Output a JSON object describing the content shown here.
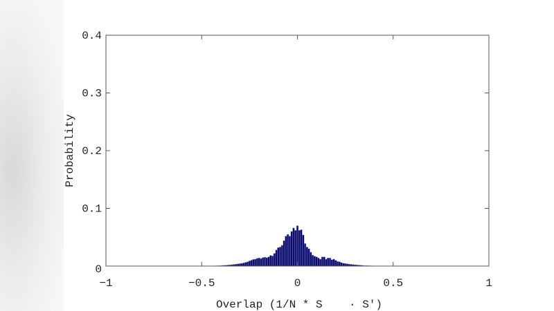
{
  "chart_data": {
    "type": "bar",
    "title": "",
    "xlabel": "Overlap (1/N * S    · S′)",
    "ylabel": "Probability",
    "xlim": [
      -1,
      1
    ],
    "ylim": [
      0,
      0.4
    ],
    "xticks": [
      "-1",
      "-0.5",
      "0",
      "0.5",
      "1"
    ],
    "xtick_values": [
      -1,
      -0.5,
      0,
      0.5,
      1
    ],
    "yticks": [
      "0",
      "0.1",
      "0.2",
      "0.3",
      "0.4"
    ],
    "ytick_values": [
      0,
      0.1,
      0.2,
      0.3,
      0.4
    ],
    "grid": false,
    "bar_color": "#0a0a6e",
    "bin_width": 0.01,
    "x": [
      -0.45,
      -0.44,
      -0.43,
      -0.42,
      -0.41,
      -0.4,
      -0.39,
      -0.38,
      -0.37,
      -0.36,
      -0.35,
      -0.34,
      -0.33,
      -0.32,
      -0.31,
      -0.3,
      -0.29,
      -0.28,
      -0.27,
      -0.26,
      -0.25,
      -0.24,
      -0.23,
      -0.22,
      -0.21,
      -0.2,
      -0.19,
      -0.18,
      -0.17,
      -0.16,
      -0.15,
      -0.14,
      -0.13,
      -0.12,
      -0.11,
      -0.1,
      -0.09,
      -0.08,
      -0.07,
      -0.06,
      -0.05,
      -0.04,
      -0.03,
      -0.02,
      -0.01,
      0.0,
      0.01,
      0.02,
      0.03,
      0.04,
      0.05,
      0.06,
      0.07,
      0.08,
      0.09,
      0.1,
      0.11,
      0.12,
      0.13,
      0.14,
      0.15,
      0.16,
      0.17,
      0.18,
      0.19,
      0.2,
      0.21,
      0.22,
      0.23,
      0.24,
      0.25,
      0.26,
      0.27,
      0.28,
      0.29,
      0.3,
      0.31,
      0.32,
      0.33,
      0.34,
      0.35,
      0.36,
      0.37,
      0.38,
      0.39,
      0.4,
      0.41,
      0.42,
      0.43,
      0.44,
      0.45
    ],
    "values": [
      0.0003,
      0.0004,
      0.0005,
      0.0006,
      0.0008,
      0.001,
      0.0012,
      0.0014,
      0.0016,
      0.0019,
      0.0022,
      0.0025,
      0.003,
      0.0034,
      0.0038,
      0.0043,
      0.0048,
      0.0055,
      0.0065,
      0.0075,
      0.009,
      0.0102,
      0.0115,
      0.012,
      0.0135,
      0.0142,
      0.013,
      0.0148,
      0.0155,
      0.0145,
      0.016,
      0.0185,
      0.0175,
      0.022,
      0.028,
      0.032,
      0.033,
      0.036,
      0.044,
      0.052,
      0.055,
      0.052,
      0.06,
      0.066,
      0.062,
      0.07,
      0.062,
      0.063,
      0.054,
      0.039,
      0.033,
      0.03,
      0.024,
      0.019,
      0.017,
      0.016,
      0.014,
      0.012,
      0.016,
      0.016,
      0.012,
      0.014,
      0.014,
      0.011,
      0.012,
      0.01,
      0.008,
      0.0075,
      0.006,
      0.005,
      0.0045,
      0.004,
      0.0035,
      0.003,
      0.0028,
      0.0024,
      0.002,
      0.0018,
      0.0015,
      0.0012,
      0.001,
      0.0009,
      0.0008,
      0.0006,
      0.0005,
      0.0004,
      0.0003,
      0.0003,
      0.0002,
      0.0002,
      0.0001
    ]
  }
}
